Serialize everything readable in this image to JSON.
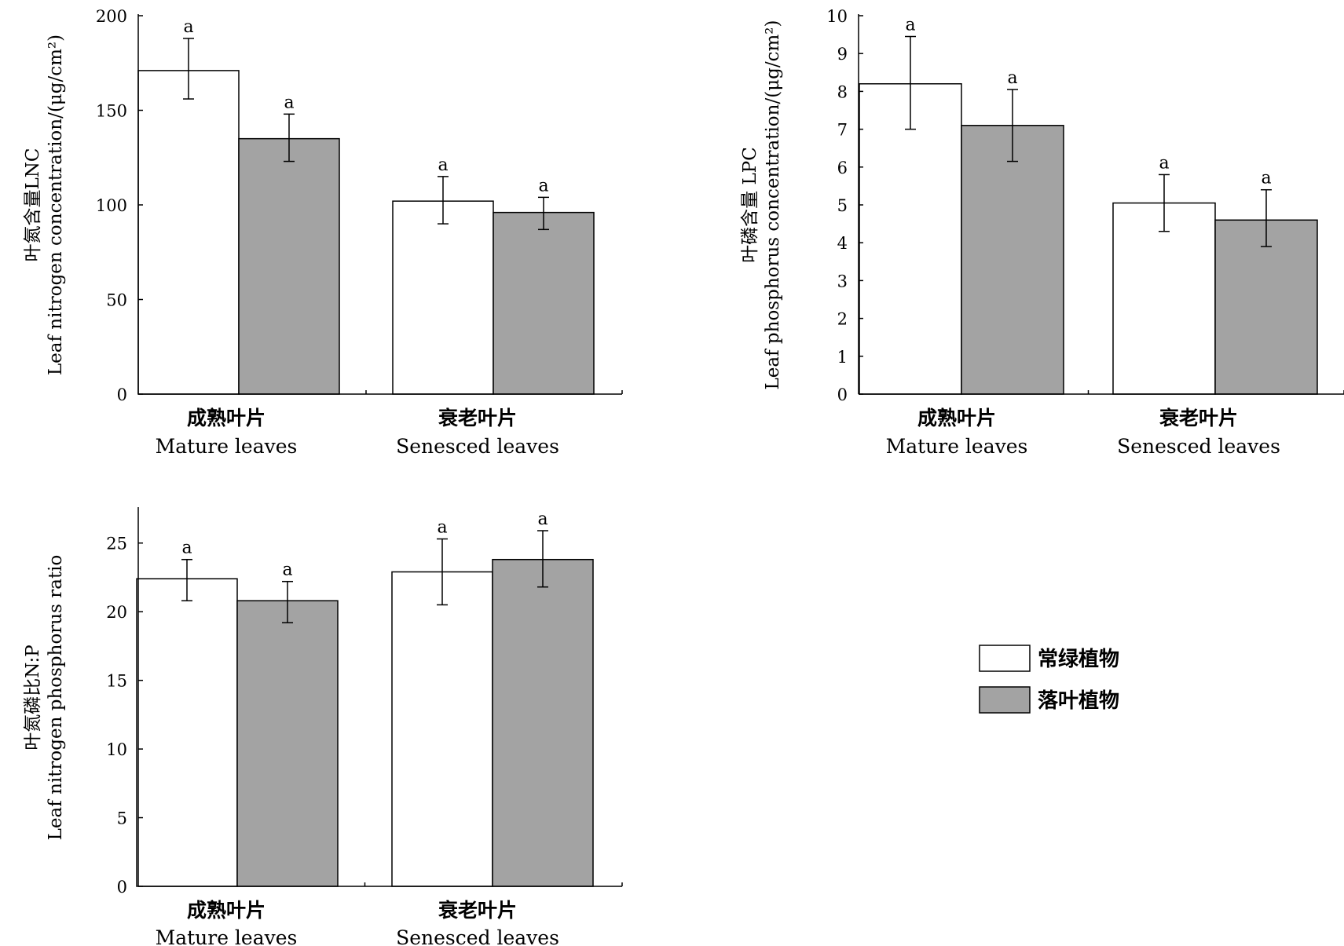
{
  "colors": {
    "evergreen": "#ffffff",
    "deciduous": "#a3a3a3",
    "stroke": "#000000"
  },
  "legend": {
    "items": [
      {
        "series": "evergreen",
        "label": "常绿植物"
      },
      {
        "series": "deciduous",
        "label": "落叶植物"
      }
    ]
  },
  "chart_data": [
    {
      "type": "bar",
      "categories_zh": [
        "成熟叶片",
        "衰老叶片"
      ],
      "categories": [
        "Mature leaves",
        "Senesced leaves"
      ],
      "ylabel_zh": "叶氮含量LNC",
      "ylabel_en": "Leaf nitrogen concentration/(μg/cm²)",
      "ylim": [
        0,
        200
      ],
      "yticks": [
        0,
        50,
        100,
        150,
        200
      ],
      "series": [
        {
          "name": "常绿植物",
          "values": [
            171,
            102
          ],
          "err_low": [
            156,
            90
          ],
          "err_high": [
            188,
            115
          ],
          "labels": [
            "a",
            "a"
          ]
        },
        {
          "name": "落叶植物",
          "values": [
            135,
            96
          ],
          "err_low": [
            123,
            87
          ],
          "err_high": [
            148,
            104
          ],
          "labels": [
            "a",
            "a"
          ]
        }
      ]
    },
    {
      "type": "bar",
      "categories_zh": [
        "成熟叶片",
        "衰老叶片"
      ],
      "categories": [
        "Mature leaves",
        "Senesced leaves"
      ],
      "ylabel_zh": "叶磷含量 LPC",
      "ylabel_en": "Leaf phosphorus concentration/(μg/cm²)",
      "ylim": [
        0,
        10
      ],
      "yticks": [
        0,
        1,
        2,
        3,
        4,
        5,
        6,
        7,
        8,
        9,
        10
      ],
      "series": [
        {
          "name": "常绿植物",
          "values": [
            8.2,
            5.05
          ],
          "err_low": [
            7.0,
            4.3
          ],
          "err_high": [
            9.45,
            5.8
          ],
          "labels": [
            "a",
            "a"
          ]
        },
        {
          "name": "落叶植物",
          "values": [
            7.1,
            4.6
          ],
          "err_low": [
            6.15,
            3.9
          ],
          "err_high": [
            8.05,
            5.4
          ],
          "labels": [
            "a",
            "a"
          ]
        }
      ]
    },
    {
      "type": "bar",
      "categories_zh": [
        "成熟叶片",
        "衰老叶片"
      ],
      "categories": [
        "Mature leaves",
        "Senesced leaves"
      ],
      "ylabel_zh": "叶氮磷比N:P",
      "ylabel_en": "Leaf nitrogen phosphorus ratio",
      "ylim": [
        0,
        27.5
      ],
      "yticks": [
        0,
        5,
        10,
        15,
        20,
        25
      ],
      "series": [
        {
          "name": "常绿植物",
          "values": [
            22.4,
            22.9
          ],
          "err_low": [
            20.8,
            20.5
          ],
          "err_high": [
            23.8,
            25.3
          ],
          "labels": [
            "a",
            "a"
          ]
        },
        {
          "name": "落叶植物",
          "values": [
            20.8,
            23.8
          ],
          "err_low": [
            19.2,
            21.8
          ],
          "err_high": [
            22.2,
            25.9
          ],
          "labels": [
            "a",
            "a"
          ]
        }
      ]
    }
  ]
}
